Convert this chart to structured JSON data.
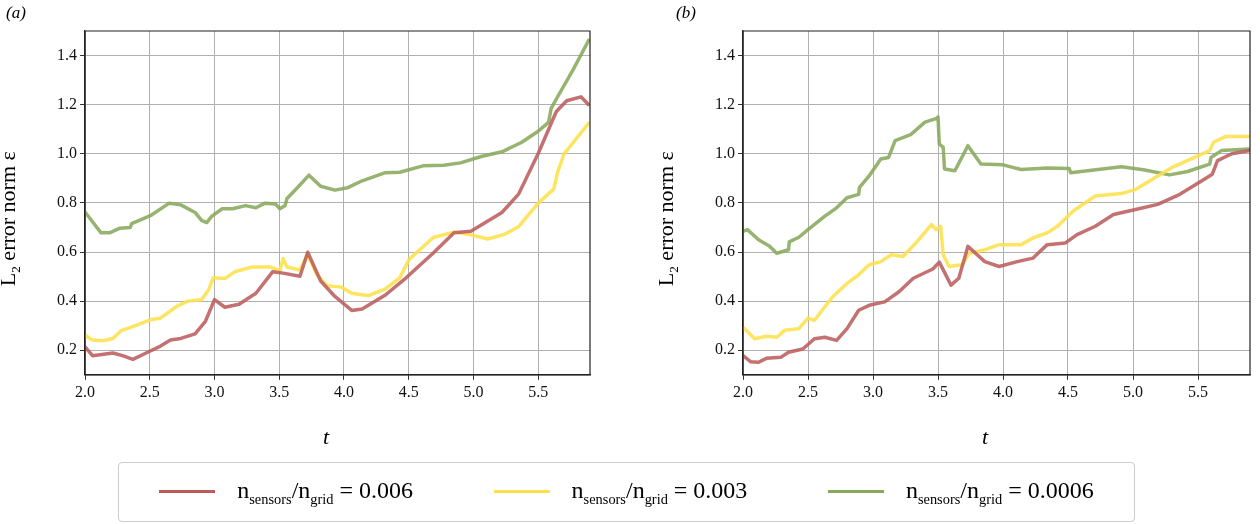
{
  "chart_data": [
    {
      "type": "line",
      "xlabel": "t",
      "ylabel": "L$_{2}$ error norm ε",
      "annotations": [
        "(a)"
      ],
      "xlim": [
        2.0,
        5.9
      ],
      "ylim": [
        0.1,
        1.5
      ],
      "xticks": [
        {
          "value": 2.0,
          "label": "2.0"
        },
        {
          "value": 2.5,
          "label": "2.5"
        },
        {
          "value": 3.0,
          "label": "3.0"
        },
        {
          "value": 3.5,
          "label": "3.5"
        },
        {
          "value": 4.0,
          "label": "4.0"
        },
        {
          "value": 4.5,
          "label": "4.5"
        },
        {
          "value": 5.0,
          "label": "5.0"
        },
        {
          "value": 5.5,
          "label": "5.5"
        }
      ],
      "yticks": [
        0.2,
        0.4,
        0.6,
        0.8,
        {
          "value": 1.0,
          "label": "1.0"
        },
        1.2,
        1.4
      ],
      "grid": true,
      "legend": "bottom",
      "series": [
        {
          "name": "n$_{sensors}$/n$_{grid}$ = 0.006",
          "color": "#bb5b5b",
          "x": [
            2.0,
            2.058,
            2.216,
            2.29,
            2.37,
            2.48,
            2.58,
            2.66,
            2.74,
            2.85,
            2.93,
            3.0,
            3.08,
            3.19,
            3.32,
            3.45,
            3.53,
            3.66,
            3.72,
            3.82,
            3.93,
            4.06,
            4.14,
            4.32,
            4.48,
            4.69,
            4.85,
            4.98,
            5.22,
            5.35,
            5.5,
            5.64,
            5.72,
            5.83,
            5.895
          ],
          "values": [
            0.214,
            0.178,
            0.189,
            0.178,
            0.163,
            0.191,
            0.216,
            0.242,
            0.248,
            0.267,
            0.318,
            0.406,
            0.375,
            0.387,
            0.432,
            0.52,
            0.514,
            0.501,
            0.599,
            0.482,
            0.419,
            0.362,
            0.368,
            0.425,
            0.495,
            0.596,
            0.678,
            0.685,
            0.761,
            0.837,
            1.001,
            1.172,
            1.216,
            1.232,
            1.197
          ]
        },
        {
          "name": "n$_{sensors}$/n$_{grid}$ = 0.003",
          "color": "#fde14a",
          "x": [
            2.0,
            2.058,
            2.137,
            2.216,
            2.28,
            2.347,
            2.505,
            2.58,
            2.716,
            2.795,
            2.9,
            2.953,
            2.99,
            3.08,
            3.16,
            3.29,
            3.43,
            3.505,
            3.53,
            3.56,
            3.66,
            3.72,
            3.79,
            3.87,
            3.98,
            4.06,
            4.19,
            4.32,
            4.43,
            4.505,
            4.69,
            4.85,
            4.98,
            5.11,
            5.24,
            5.35,
            5.5,
            5.62,
            5.65,
            5.7,
            5.895
          ],
          "values": [
            0.261,
            0.242,
            0.239,
            0.248,
            0.28,
            0.292,
            0.324,
            0.33,
            0.381,
            0.4,
            0.406,
            0.444,
            0.495,
            0.492,
            0.52,
            0.539,
            0.539,
            0.523,
            0.573,
            0.539,
            0.527,
            0.59,
            0.508,
            0.463,
            0.457,
            0.432,
            0.422,
            0.45,
            0.495,
            0.571,
            0.659,
            0.681,
            0.67,
            0.653,
            0.672,
            0.704,
            0.799,
            0.856,
            0.925,
            1.0,
            1.128
          ]
        },
        {
          "name": "n$_{sensors}$/n$_{grid}$ = 0.0006",
          "color": "#86a95a",
          "x": [
            2.0,
            2.058,
            2.124,
            2.19,
            2.27,
            2.35,
            2.36,
            2.505,
            2.65,
            2.74,
            2.85,
            2.9,
            2.94,
            2.98,
            3.06,
            3.14,
            3.24,
            3.32,
            3.39,
            3.47,
            3.505,
            3.545,
            3.56,
            3.64,
            3.73,
            3.82,
            3.93,
            4.03,
            4.14,
            4.32,
            4.43,
            4.61,
            4.77,
            4.9,
            5.06,
            5.22,
            5.37,
            5.5,
            5.58,
            5.6,
            5.64,
            5.77,
            5.895
          ],
          "values": [
            0.763,
            0.723,
            0.678,
            0.678,
            0.697,
            0.7,
            0.716,
            0.748,
            0.799,
            0.792,
            0.761,
            0.729,
            0.72,
            0.746,
            0.776,
            0.776,
            0.789,
            0.78,
            0.799,
            0.796,
            0.776,
            0.789,
            0.818,
            0.862,
            0.913,
            0.868,
            0.852,
            0.862,
            0.89,
            0.923,
            0.925,
            0.951,
            0.953,
            0.963,
            0.989,
            1.008,
            1.046,
            1.092,
            1.128,
            1.185,
            1.223,
            1.343,
            1.467
          ]
        }
      ]
    },
    {
      "type": "line",
      "xlabel": "t",
      "ylabel": "L$_{2}$ error norm ε",
      "annotations": [
        "(b)"
      ],
      "xlim": [
        2.0,
        5.9
      ],
      "ylim": [
        0.1,
        1.5
      ],
      "xticks": [
        {
          "value": 2.0,
          "label": "2.0"
        },
        {
          "value": 2.5,
          "label": "2.5"
        },
        {
          "value": 3.0,
          "label": "3.0"
        },
        {
          "value": 3.5,
          "label": "3.5"
        },
        {
          "value": 4.0,
          "label": "4.0"
        },
        {
          "value": 4.5,
          "label": "4.5"
        },
        {
          "value": 5.0,
          "label": "5.0"
        },
        {
          "value": 5.5,
          "label": "5.5"
        }
      ],
      "yticks": [
        0.2,
        0.4,
        0.6,
        0.8,
        {
          "value": 1.0,
          "label": "1.0"
        },
        1.2,
        1.4
      ],
      "grid": true,
      "series": [
        {
          "color": "#bb5b5b",
          "x": [
            2.0,
            2.06,
            2.12,
            2.18,
            2.29,
            2.35,
            2.46,
            2.55,
            2.63,
            2.72,
            2.8,
            2.89,
            2.97,
            3.09,
            3.2,
            3.31,
            3.46,
            3.51,
            3.56,
            3.6,
            3.66,
            3.73,
            3.86,
            3.97,
            4.11,
            4.23,
            4.34,
            4.48,
            4.57,
            4.71,
            4.85,
            5.02,
            5.19,
            5.36,
            5.53,
            5.61,
            5.65,
            5.76,
            5.9
          ],
          "values": [
            0.178,
            0.153,
            0.151,
            0.167,
            0.171,
            0.192,
            0.205,
            0.247,
            0.253,
            0.24,
            0.288,
            0.363,
            0.383,
            0.397,
            0.438,
            0.493,
            0.531,
            0.559,
            0.507,
            0.465,
            0.493,
            0.623,
            0.561,
            0.541,
            0.561,
            0.575,
            0.63,
            0.637,
            0.671,
            0.705,
            0.753,
            0.773,
            0.794,
            0.835,
            0.89,
            0.917,
            0.972,
            1.0,
            1.013
          ]
        },
        {
          "color": "#fde14a",
          "x": [
            2.0,
            2.09,
            2.18,
            2.26,
            2.32,
            2.43,
            2.5,
            2.55,
            2.69,
            2.8,
            2.89,
            2.97,
            3.06,
            3.14,
            3.23,
            3.34,
            3.45,
            3.485,
            3.52,
            3.54,
            3.585,
            3.685,
            3.74,
            3.86,
            3.97,
            4.14,
            4.23,
            4.34,
            4.42,
            4.54,
            4.71,
            4.91,
            5.02,
            5.19,
            5.31,
            5.59,
            5.62,
            5.71,
            5.9
          ],
          "values": [
            0.294,
            0.247,
            0.257,
            0.253,
            0.281,
            0.288,
            0.331,
            0.322,
            0.418,
            0.472,
            0.507,
            0.548,
            0.561,
            0.589,
            0.582,
            0.643,
            0.712,
            0.691,
            0.705,
            0.589,
            0.541,
            0.548,
            0.595,
            0.609,
            0.63,
            0.63,
            0.657,
            0.678,
            0.705,
            0.767,
            0.828,
            0.838,
            0.855,
            0.91,
            0.947,
            1.013,
            1.047,
            1.07,
            1.07
          ]
        },
        {
          "color": "#86a95a",
          "x": [
            2.0,
            2.034,
            2.12,
            2.205,
            2.26,
            2.35,
            2.356,
            2.43,
            2.5,
            2.63,
            2.72,
            2.8,
            2.89,
            2.895,
            2.97,
            3.06,
            3.12,
            3.17,
            3.29,
            3.4,
            3.485,
            3.5,
            3.51,
            3.54,
            3.55,
            3.63,
            3.73,
            3.83,
            4.0,
            4.14,
            4.34,
            4.51,
            4.52,
            4.91,
            5.08,
            5.28,
            5.42,
            5.59,
            5.6,
            5.68,
            5.9
          ],
          "values": [
            0.684,
            0.691,
            0.65,
            0.623,
            0.595,
            0.609,
            0.641,
            0.66,
            0.691,
            0.746,
            0.78,
            0.821,
            0.835,
            0.862,
            0.91,
            0.979,
            0.985,
            1.054,
            1.078,
            1.129,
            1.143,
            1.15,
            1.04,
            1.026,
            0.938,
            0.931,
            1.033,
            0.958,
            0.955,
            0.936,
            0.942,
            0.94,
            0.923,
            0.947,
            0.935,
            0.914,
            0.928,
            0.958,
            0.985,
            1.013,
            1.02
          ]
        }
      ]
    }
  ]
}
